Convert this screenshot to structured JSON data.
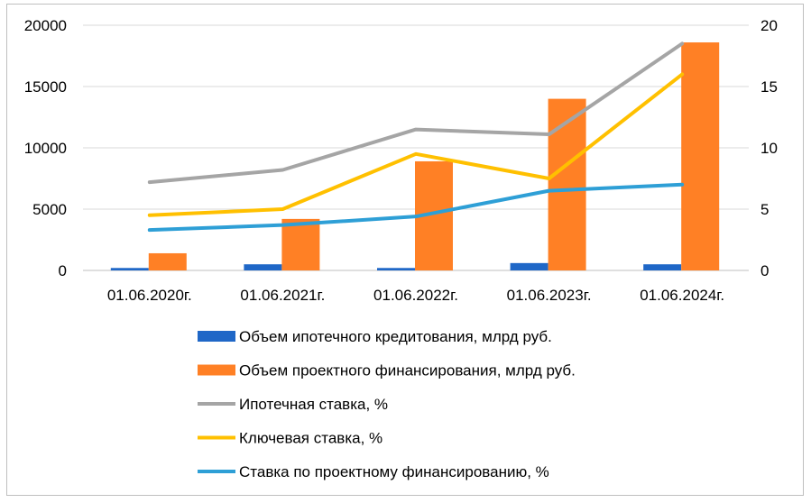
{
  "chart_data": {
    "type": "bar+line",
    "categories": [
      "01.06.2020г.",
      "01.06.2021г.",
      "01.06.2022г.",
      "01.06.2023г.",
      "01.06.2024г."
    ],
    "left_axis": {
      "ticks": [
        "0",
        "5000",
        "10000",
        "15000",
        "20000"
      ],
      "ylim": [
        0,
        20000
      ]
    },
    "right_axis": {
      "ticks": [
        "0",
        "5",
        "10",
        "15",
        "20"
      ],
      "ylim": [
        0,
        20
      ]
    },
    "grid": true,
    "legend_position": "bottom",
    "bar_series": [
      {
        "name": "Объем ипотечного кредитования, млрд руб.",
        "color": "#1f67c7",
        "axis": "left",
        "values": [
          200,
          500,
          200,
          600,
          500
        ]
      },
      {
        "name": "Объем проектного финансирования, млрд руб.",
        "color": "#ff8025",
        "axis": "left",
        "values": [
          1400,
          4200,
          8900,
          14000,
          18600
        ]
      }
    ],
    "line_series": [
      {
        "name": "Ипотечная ставка, %",
        "color": "#a5a5a5",
        "axis": "right",
        "values": [
          7.2,
          8.2,
          11.5,
          11.1,
          18.5
        ]
      },
      {
        "name": "Ключевая ставка, %",
        "color": "#ffc000",
        "axis": "right",
        "values": [
          4.5,
          5.0,
          9.5,
          7.5,
          16.0
        ]
      },
      {
        "name": "Ставка по проектному финансированию, %",
        "color": "#2e9fd6",
        "axis": "right",
        "values": [
          3.3,
          3.7,
          4.4,
          6.5,
          7.0
        ]
      }
    ]
  }
}
